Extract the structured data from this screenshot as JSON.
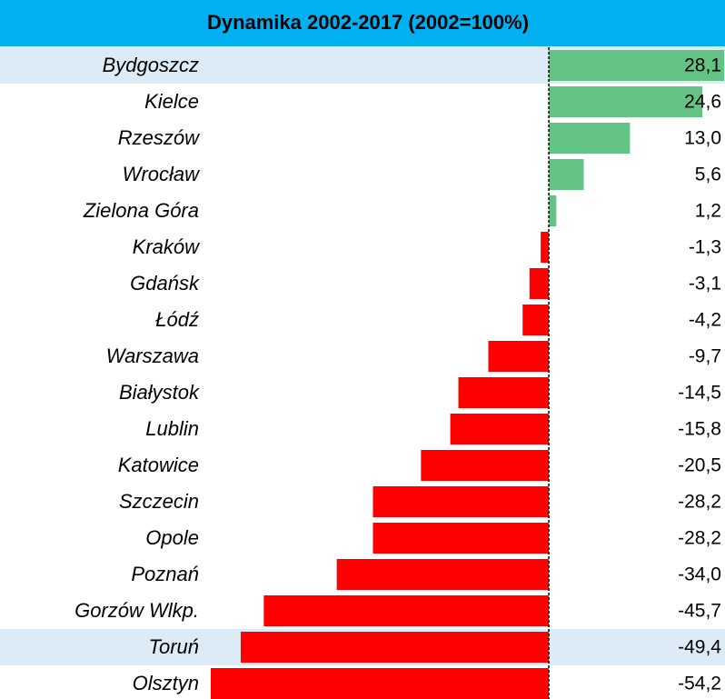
{
  "chart_data": {
    "type": "bar",
    "orientation": "horizontal",
    "title": "Dynamika 2002-2017 (2002=100%)",
    "title_background": "#00b0f0",
    "categories": [
      "Bydgoszcz",
      "Kielce",
      "Rzeszów",
      "Wrocław",
      "Zielona Góra",
      "Kraków",
      "Gdańsk",
      "Łódź",
      "Warszawa",
      "Białystok",
      "Lublin",
      "Katowice",
      "Szczecin",
      "Opole",
      "Poznań",
      "Gorzów Wlkp.",
      "Toruń",
      "Olsztyn"
    ],
    "values": [
      28.1,
      24.6,
      13.0,
      5.6,
      1.2,
      -1.3,
      -3.1,
      -4.2,
      -9.7,
      -14.5,
      -15.8,
      -20.5,
      -28.2,
      -28.2,
      -34.0,
      -45.7,
      -49.4,
      -54.2
    ],
    "value_labels": [
      "28,1",
      "24,6",
      "13,0",
      "5,6",
      "1,2",
      "-1,3",
      "-3,1",
      "-4,2",
      "-9,7",
      "-14,5",
      "-15,8",
      "-20,5",
      "-28,2",
      "-28,2",
      "-34,0",
      "-45,7",
      "-49,4",
      "-54,2"
    ],
    "positive_color": "#63c384",
    "negative_color": "#ff0000",
    "highlight_rows": [
      0,
      16
    ],
    "highlight_color": "#ddebf7",
    "xlim": [
      -54.2,
      28.1
    ]
  }
}
